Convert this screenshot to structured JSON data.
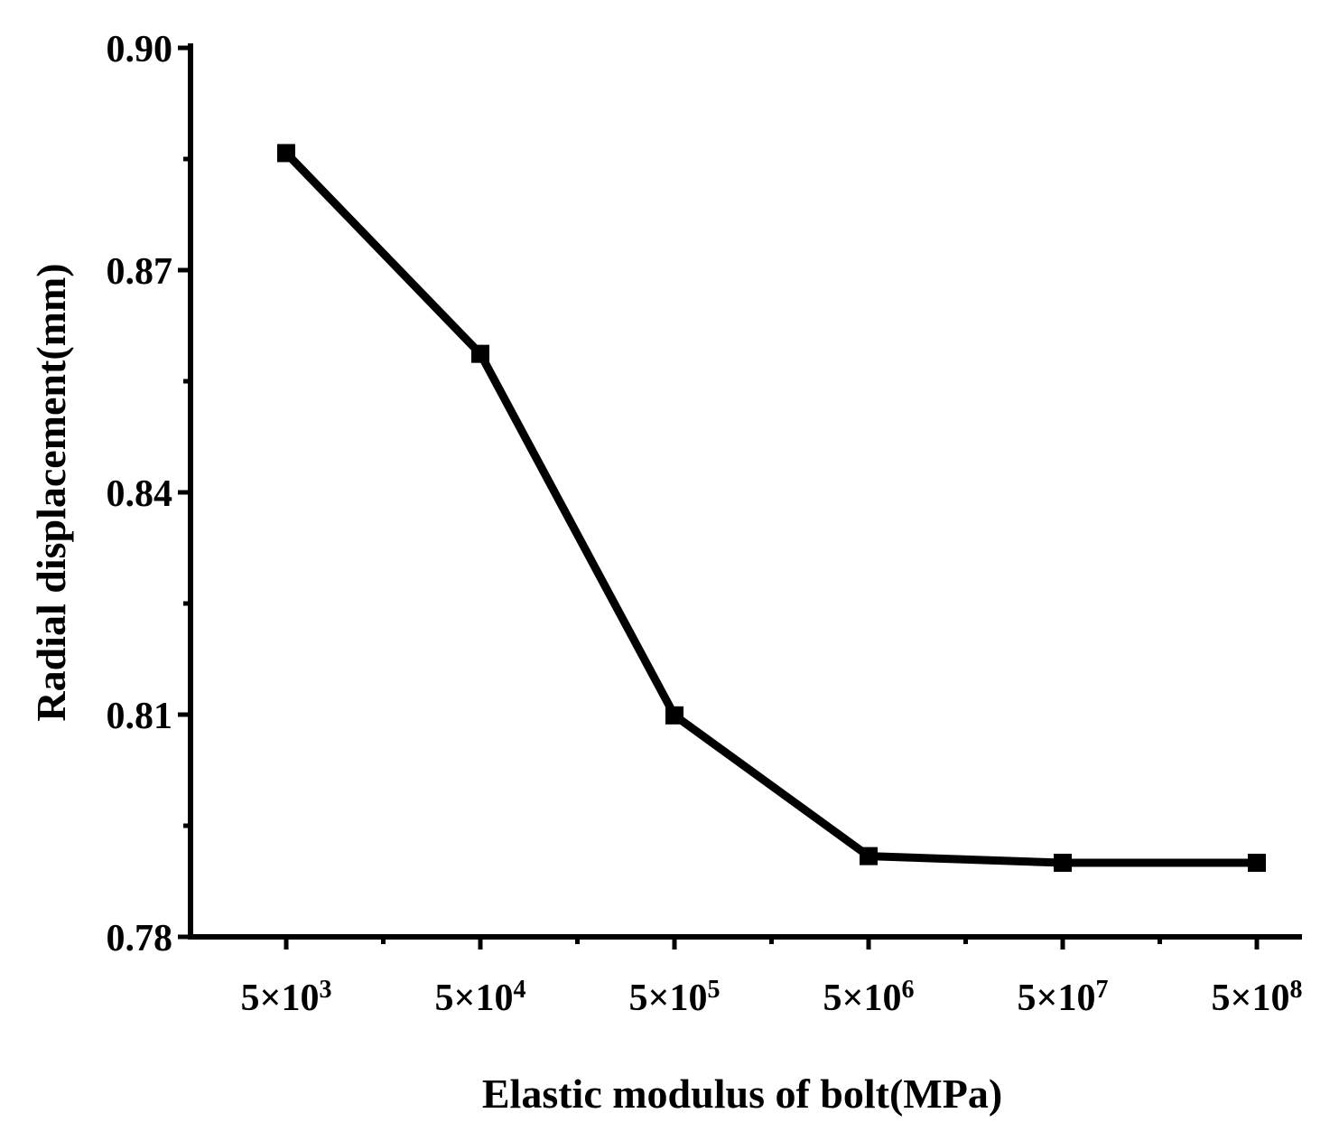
{
  "chart_data": {
    "type": "line",
    "title": "",
    "xlabel": "Elastic modulus of bolt(MPa)",
    "ylabel": "Radial displacement(mm)",
    "x_tick_labels": [
      {
        "base": "5×10",
        "exp": "3"
      },
      {
        "base": "5×10",
        "exp": "4"
      },
      {
        "base": "5×10",
        "exp": "5"
      },
      {
        "base": "5×10",
        "exp": "6"
      },
      {
        "base": "5×10",
        "exp": "7"
      },
      {
        "base": "5×10",
        "exp": "8"
      }
    ],
    "x": [
      5000,
      50000,
      500000,
      5000000,
      50000000,
      500000000
    ],
    "y_ticks": [
      "0.78",
      "0.81",
      "0.84",
      "0.87",
      "0.90"
    ],
    "y_tick_values": [
      0.78,
      0.81,
      0.84,
      0.87,
      0.9
    ],
    "ylim": [
      0.78,
      0.9
    ],
    "x_scale": "log",
    "grid": false,
    "legend": "none",
    "series": [
      {
        "marker": "square",
        "color": "#000000",
        "values": [
          0.8858,
          0.8587,
          0.8099,
          0.7909,
          0.79,
          0.79
        ]
      }
    ]
  }
}
